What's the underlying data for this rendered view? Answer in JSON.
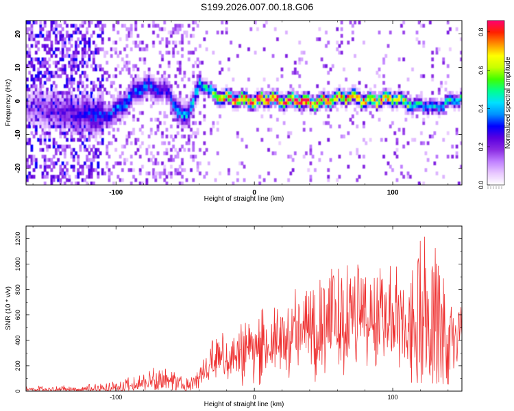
{
  "title": "S199.2026.007.00.18.G06",
  "chart_data": [
    {
      "type": "heatmap",
      "xlabel": "Height of straight line (km)",
      "ylabel": "Frequency (Hz)",
      "xlim": [
        -165,
        150
      ],
      "ylim": [
        -25,
        24
      ],
      "xticks": [
        -100,
        0,
        100
      ],
      "yticks": [
        -20,
        -10,
        0,
        10,
        20
      ],
      "colorbar": {
        "label": "Normalized spectral amplitude",
        "range": [
          0.0,
          0.86
        ],
        "ticks": [
          "0.0",
          "0.2",
          "0.4",
          "0.6",
          "0.8"
        ],
        "colors": [
          "#ffffff",
          "#e8c8ff",
          "#c080ff",
          "#8a2be2",
          "#5a00e0",
          "#0000ff",
          "#0090ff",
          "#00e0ff",
          "#00ff90",
          "#40ff00",
          "#c8ff00",
          "#ffff00",
          "#ff9000",
          "#ff2000",
          "#ff0070"
        ]
      },
      "ridge": {
        "x": [
          -165,
          -150,
          -135,
          -120,
          -110,
          -100,
          -92,
          -85,
          -78,
          -70,
          -62,
          -56,
          -52,
          -48,
          -44,
          -40,
          -36,
          -32,
          -28,
          -20,
          -10,
          0,
          10,
          20,
          30,
          40,
          50,
          60,
          70,
          80,
          90,
          100,
          110,
          115,
          120,
          125,
          130,
          135,
          140,
          145,
          150
        ],
        "freq": [
          -2,
          -3,
          -4,
          -4.5,
          -5,
          -3,
          0,
          3,
          4,
          3,
          2,
          -4,
          -5,
          -3,
          0,
          5,
          4,
          2,
          1,
          0.5,
          0,
          -0.5,
          0.5,
          -0.5,
          0,
          -1,
          -0.5,
          0.5,
          1,
          -0.5,
          0,
          0.5,
          -1,
          -2,
          -1.5,
          -2,
          -2.5,
          -1.5,
          -0.5,
          0,
          0.5
        ],
        "amplitude": [
          0.12,
          0.18,
          0.22,
          0.28,
          0.3,
          0.34,
          0.36,
          0.35,
          0.33,
          0.3,
          0.3,
          0.38,
          0.4,
          0.38,
          0.4,
          0.42,
          0.45,
          0.55,
          0.65,
          0.74,
          0.78,
          0.8,
          0.82,
          0.8,
          0.84,
          0.86,
          0.75,
          0.72,
          0.7,
          0.74,
          0.78,
          0.7,
          0.55,
          0.42,
          0.44,
          0.4,
          0.4,
          0.42,
          0.45,
          0.46,
          0.44
        ]
      }
    },
    {
      "type": "line",
      "xlabel": "Height of straight line (km)",
      "ylabel": "SNR (10 * v/v)",
      "xlim": [
        -165,
        150
      ],
      "ylim": [
        0,
        1300
      ],
      "xticks": [
        -100,
        0,
        100
      ],
      "yticks": [
        0,
        200,
        400,
        600,
        800,
        1000,
        1200
      ],
      "color": "#ee3030",
      "series": [
        {
          "name": "SNR",
          "x": [
            -165,
            -150,
            -130,
            -110,
            -100,
            -90,
            -80,
            -70,
            -60,
            -50,
            -45,
            -40,
            -35,
            -30,
            -25,
            -20,
            -10,
            0,
            10,
            20,
            30,
            40,
            50,
            60,
            70,
            80,
            90,
            100,
            110,
            120,
            130,
            140,
            150
          ],
          "mid": [
            12,
            14,
            16,
            20,
            25,
            35,
            60,
            80,
            65,
            40,
            60,
            120,
            160,
            220,
            240,
            260,
            290,
            330,
            360,
            400,
            440,
            470,
            480,
            520,
            530,
            520,
            500,
            480,
            460,
            440,
            420,
            360,
            350
          ],
          "peak": [
            40,
            45,
            50,
            75,
            90,
            110,
            150,
            220,
            160,
            110,
            150,
            250,
            300,
            450,
            460,
            520,
            600,
            680,
            640,
            760,
            820,
            900,
            960,
            1020,
            1090,
            1070,
            1010,
            990,
            1000,
            1300,
            1140,
            990,
            650
          ]
        }
      ]
    }
  ]
}
